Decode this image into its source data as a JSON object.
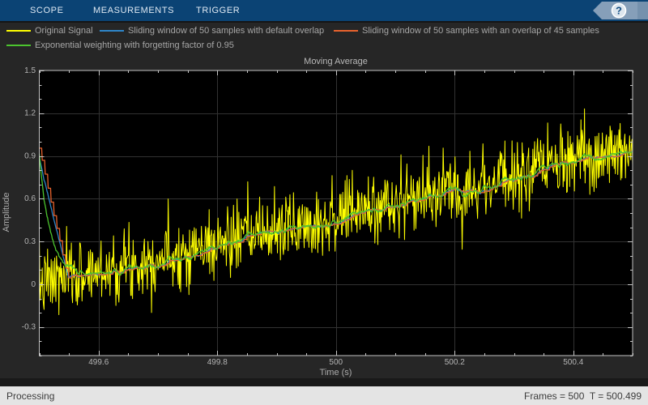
{
  "tabbar": {
    "tabs": [
      {
        "label": "SCOPE"
      },
      {
        "label": "MEASUREMENTS"
      },
      {
        "label": "TRIGGER"
      }
    ],
    "help_glyph": "?"
  },
  "statusbar": {
    "left": "Processing",
    "right": "Frames = 500  T = 500.499"
  },
  "colors": {
    "tabbar_bg": "#0b4374",
    "figure_bg": "#262626",
    "plot_bg": "#000000",
    "grid": "#323232",
    "axis_border": "#c3c3c3",
    "tick": "#c8c8c8",
    "tick_label": "#b4b4b4",
    "help_fill": "#869fb9",
    "help_band": "#7591ad",
    "help_circle_fill": "#dde6ee",
    "help_circle_ring": "#ffffff",
    "help_glyph_color": "#134d82"
  },
  "chart_data": {
    "type": "line",
    "title": "Moving Average",
    "xlabel": "Time (s)",
    "ylabel": "Amplitude",
    "xlim": [
      499.5,
      500.5
    ],
    "ylim": [
      -0.5,
      1.5
    ],
    "xticks": [
      499.6,
      499.8,
      500,
      500.2,
      500.4
    ],
    "yticks": [
      -0.3,
      0,
      0.3,
      0.6,
      0.9,
      1.2,
      1.5
    ],
    "x_minor_step": 0.05,
    "y_minor_step": 0.1,
    "grid": true,
    "legend_position": "top-left",
    "n_samples": 1000,
    "seed": 7,
    "signal_model": {
      "description": "sawtooth ramp (period 1 s) with gaussian noise; filters carry state ~0.95 from previous cycle causing the start-up transient",
      "mean_start": 0,
      "mean_end": 0.95,
      "noise_sigma": 0.12,
      "prev_state": 0.95
    },
    "series": [
      {
        "name": "Original Signal",
        "color": "#ffff00",
        "kind": "raw",
        "linewidth": 1
      },
      {
        "name": "Sliding window of 50 samples with default overlap",
        "color": "#2e86c9",
        "kind": "sliding",
        "window": 50,
        "hop": 1,
        "linewidth": 1.3
      },
      {
        "name": "Sliding window of 50 samples with an overlap of 45 samples",
        "color": "#e8622d",
        "kind": "sliding",
        "window": 50,
        "hop": 5,
        "linewidth": 1.3
      },
      {
        "name": "Exponential weighting with forgetting factor of 0.95",
        "color": "#4cc42e",
        "kind": "exponential",
        "forgetting": 0.95,
        "linewidth": 1.3
      }
    ]
  }
}
